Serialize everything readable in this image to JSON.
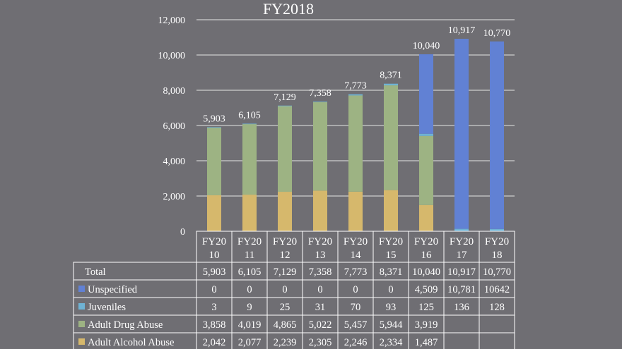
{
  "chart_data": {
    "type": "bar",
    "stacked": true,
    "title": "FY2018",
    "xlabel": "",
    "ylabel": "",
    "ylim": [
      0,
      12000
    ],
    "y_ticks": [
      "0",
      "2,000",
      "4,000",
      "6,000",
      "8,000",
      "10,000",
      "12,000"
    ],
    "grid": true,
    "categories": [
      [
        "FY20",
        "10"
      ],
      [
        "FY20",
        "11"
      ],
      [
        "FY20",
        "12"
      ],
      [
        "FY20",
        "13"
      ],
      [
        "FY20",
        "14"
      ],
      [
        "FY20",
        "15"
      ],
      [
        "FY20",
        "16"
      ],
      [
        "FY20",
        "17"
      ],
      [
        "FY20",
        "18"
      ]
    ],
    "totals": [
      5903,
      6105,
      7129,
      7358,
      7773,
      8371,
      10040,
      10917,
      10770
    ],
    "total_labels": [
      "5,903",
      "6,105",
      "7,129",
      "7,358",
      "7,773",
      "8,371",
      "10,040",
      "10,917",
      "10,770"
    ],
    "series": [
      {
        "name": "Adult Alcohol Abuse",
        "color": "#d6b86c",
        "values": [
          2042,
          2077,
          2239,
          2305,
          2246,
          2334,
          1487,
          null,
          null
        ],
        "labels": [
          "2,042",
          "2,077",
          "2,239",
          "2,305",
          "2,246",
          "2,334",
          "1,487",
          "",
          ""
        ]
      },
      {
        "name": "Adult Drug Abuse",
        "color": "#9db383",
        "values": [
          3858,
          4019,
          4865,
          5022,
          5457,
          5944,
          3919,
          null,
          null
        ],
        "labels": [
          "3,858",
          "4,019",
          "4,865",
          "5,022",
          "5,457",
          "5,944",
          "3,919",
          "",
          ""
        ]
      },
      {
        "name": "Juveniles",
        "color": "#6fb3d4",
        "values": [
          3,
          9,
          25,
          31,
          70,
          93,
          125,
          136,
          128
        ],
        "labels": [
          "3",
          "9",
          "25",
          "31",
          "70",
          "93",
          "125",
          "136",
          "128"
        ]
      },
      {
        "name": "Unspecified",
        "color": "#6181d4",
        "values": [
          0,
          0,
          0,
          0,
          0,
          0,
          4509,
          10781,
          10642
        ],
        "labels": [
          "0",
          "0",
          "0",
          "0",
          "0",
          "0",
          "4,509",
          "10,781",
          "10642"
        ]
      }
    ],
    "table_rows": [
      {
        "name": "Total",
        "swatch": null,
        "cells": [
          "5,903",
          "6,105",
          "7,129",
          "7,358",
          "7,773",
          "8,371",
          "10,040",
          "10,917",
          "10,770"
        ]
      },
      {
        "name": "Unspecified",
        "swatch": "#6181d4",
        "cells": [
          "0",
          "0",
          "0",
          "0",
          "0",
          "0",
          "4,509",
          "10,781",
          "10642"
        ]
      },
      {
        "name": "Juveniles",
        "swatch": "#6fb3d4",
        "cells": [
          "3",
          "9",
          "25",
          "31",
          "70",
          "93",
          "125",
          "136",
          "128"
        ]
      },
      {
        "name": "Adult Drug Abuse",
        "swatch": "#9db383",
        "cells": [
          "3,858",
          "4,019",
          "4,865",
          "5,022",
          "5,457",
          "5,944",
          "3,919",
          "",
          ""
        ]
      },
      {
        "name": "Adult Alcohol Abuse",
        "swatch": "#d6b86c",
        "cells": [
          "2,042",
          "2,077",
          "2,239",
          "2,305",
          "2,246",
          "2,334",
          "1,487",
          "",
          ""
        ]
      }
    ]
  }
}
